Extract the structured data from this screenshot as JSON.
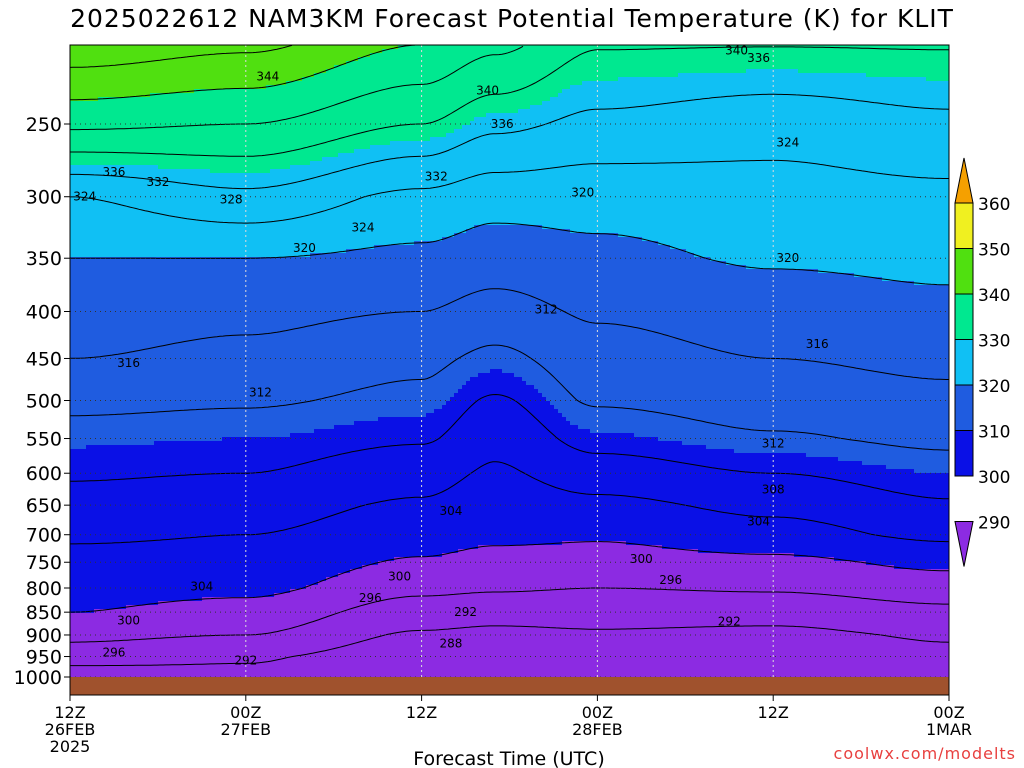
{
  "title": "2025022612 NAM3KM Forecast Potential Temperature (K) for KLIT",
  "credit": "coolwx.com/modelts",
  "chart_data": {
    "type": "heatmap",
    "title": "2025022612 NAM3KM Forecast Potential Temperature (K) for KLIT",
    "xlabel": "Forecast Time (UTC)",
    "ylabel": "",
    "x_range_hours": [
      0,
      60
    ],
    "x_ticks": [
      {
        "hour": 0,
        "label1": "12Z",
        "label2": "26FEB",
        "label3": "2025"
      },
      {
        "hour": 12,
        "label1": "00Z",
        "label2": "27FEB",
        "label3": ""
      },
      {
        "hour": 24,
        "label1": "12Z",
        "label2": "",
        "label3": ""
      },
      {
        "hour": 36,
        "label1": "00Z",
        "label2": "28FEB",
        "label3": ""
      },
      {
        "hour": 48,
        "label1": "12Z",
        "label2": "",
        "label3": ""
      },
      {
        "hour": 60,
        "label1": "00Z",
        "label2": "1MAR",
        "label3": ""
      }
    ],
    "y_scale": "log pressure (inverted)",
    "y_range_hpa": [
      200,
      1040
    ],
    "y_ticks": [
      250,
      300,
      350,
      400,
      450,
      500,
      550,
      600,
      650,
      700,
      750,
      800,
      850,
      900,
      950,
      1000
    ],
    "grid": "dotted",
    "surface_color": "#a0522d",
    "colorbar": {
      "position": "right",
      "levels": [
        290,
        300,
        310,
        320,
        330,
        340,
        350,
        360
      ],
      "colors": [
        "#8c2be2",
        "#0a10e6",
        "#1f5ce0",
        "#10c0f4",
        "#00e890",
        "#50e010",
        "#f0f020",
        "#f5a000"
      ]
    },
    "contour_interval_K": 4,
    "column_profiles": [
      {
        "hour": 0,
        "pressure_hpa": [
          1000,
          950,
          900,
          850,
          800,
          750,
          700,
          650,
          600,
          550,
          500,
          450,
          400,
          350,
          300,
          250,
          200
        ],
        "theta_K": [
          289.5,
          294,
          297,
          300,
          301.5,
          303,
          304.5,
          306.5,
          308.5,
          310.5,
          313,
          316,
          318,
          320,
          324,
          337,
          348
        ]
      },
      {
        "hour": 12,
        "pressure_hpa": [
          1000,
          950,
          900,
          850,
          800,
          750,
          700,
          650,
          600,
          550,
          500,
          450,
          400,
          350,
          300,
          250,
          200
        ],
        "theta_K": [
          291,
          292.5,
          296,
          298.5,
          301,
          303,
          304,
          305.5,
          308,
          310,
          312.5,
          315,
          317,
          320,
          327,
          336,
          346
        ]
      },
      {
        "hour": 24,
        "pressure_hpa": [
          1000,
          950,
          900,
          850,
          800,
          750,
          700,
          650,
          600,
          550,
          500,
          450,
          400,
          350,
          300,
          250,
          200
        ],
        "theta_K": [
          288,
          289.5,
          291.5,
          294,
          297,
          299.5,
          302,
          303.5,
          305.5,
          308.5,
          311,
          313,
          316,
          319,
          323,
          332,
          341
        ]
      },
      {
        "hour": 29,
        "pressure_hpa": [
          1000,
          950,
          900,
          850,
          800,
          750,
          700,
          650,
          600,
          550,
          500,
          450,
          400,
          350,
          300,
          250,
          200
        ],
        "theta_K": [
          288,
          289,
          291,
          293.5,
          296.5,
          298.5,
          301,
          302,
          303.5,
          305,
          307.5,
          311,
          314.5,
          318,
          321.5,
          329,
          338
        ]
      },
      {
        "hour": 36,
        "pressure_hpa": [
          1000,
          950,
          900,
          850,
          800,
          750,
          700,
          650,
          600,
          550,
          500,
          450,
          400,
          350,
          300,
          250,
          200
        ],
        "theta_K": [
          289,
          290,
          291.5,
          293.5,
          296,
          298.5,
          300.5,
          303,
          306,
          309.5,
          312.5,
          314.5,
          316.5,
          319,
          321.5,
          327,
          333
        ]
      },
      {
        "hour": 48,
        "pressure_hpa": [
          1000,
          950,
          900,
          850,
          800,
          750,
          700,
          650,
          600,
          550,
          500,
          450,
          400,
          350,
          300,
          250,
          200
        ],
        "theta_K": [
          288,
          289,
          291,
          293.5,
          296.5,
          299,
          302.5,
          305,
          308,
          311.5,
          314,
          316,
          318,
          320.5,
          322.5,
          325.5,
          333
        ]
      },
      {
        "hour": 60,
        "pressure_hpa": [
          1000,
          950,
          900,
          850,
          800,
          750,
          700,
          650,
          600,
          550,
          500,
          450,
          400,
          350,
          300,
          250,
          200
        ],
        "theta_K": [
          290,
          291,
          292.5,
          295,
          298,
          301,
          305,
          307.5,
          310,
          313,
          315,
          317,
          319,
          321,
          323,
          327,
          333
        ]
      }
    ],
    "contour_labels": [
      {
        "text": "344",
        "hour": 13.5,
        "hpa": 222
      },
      {
        "text": "340",
        "hour": 28.5,
        "hpa": 230
      },
      {
        "text": "340",
        "hour": 45.5,
        "hpa": 208
      },
      {
        "text": "336",
        "hour": 47,
        "hpa": 212
      },
      {
        "text": "336",
        "hour": 29.5,
        "hpa": 250
      },
      {
        "text": "336",
        "hour": 3,
        "hpa": 282
      },
      {
        "text": "332",
        "hour": 6,
        "hpa": 289
      },
      {
        "text": "332",
        "hour": 25,
        "hpa": 285
      },
      {
        "text": "324",
        "hour": 49,
        "hpa": 262
      },
      {
        "text": "324",
        "hour": 1,
        "hpa": 300
      },
      {
        "text": "328",
        "hour": 11,
        "hpa": 302
      },
      {
        "text": "320",
        "hour": 35,
        "hpa": 297
      },
      {
        "text": "324",
        "hour": 20,
        "hpa": 324
      },
      {
        "text": "320",
        "hour": 16,
        "hpa": 341
      },
      {
        "text": "320",
        "hour": 49,
        "hpa": 350
      },
      {
        "text": "312",
        "hour": 32.5,
        "hpa": 398
      },
      {
        "text": "316",
        "hour": 4,
        "hpa": 455
      },
      {
        "text": "316",
        "hour": 51,
        "hpa": 434
      },
      {
        "text": "312",
        "hour": 13,
        "hpa": 490
      },
      {
        "text": "312",
        "hour": 48,
        "hpa": 557
      },
      {
        "text": "308",
        "hour": 48,
        "hpa": 625
      },
      {
        "text": "304",
        "hour": 26,
        "hpa": 660
      },
      {
        "text": "304",
        "hour": 47,
        "hpa": 677
      },
      {
        "text": "300",
        "hour": 39,
        "hpa": 744
      },
      {
        "text": "300",
        "hour": 22.5,
        "hpa": 777
      },
      {
        "text": "296",
        "hour": 41,
        "hpa": 784
      },
      {
        "text": "304",
        "hour": 9,
        "hpa": 797
      },
      {
        "text": "296",
        "hour": 20.5,
        "hpa": 820
      },
      {
        "text": "292",
        "hour": 27,
        "hpa": 850
      },
      {
        "text": "292",
        "hour": 45,
        "hpa": 870
      },
      {
        "text": "300",
        "hour": 4,
        "hpa": 868
      },
      {
        "text": "296",
        "hour": 3,
        "hpa": 940
      },
      {
        "text": "288",
        "hour": 26,
        "hpa": 920
      },
      {
        "text": "292",
        "hour": 12,
        "hpa": 960
      }
    ]
  }
}
